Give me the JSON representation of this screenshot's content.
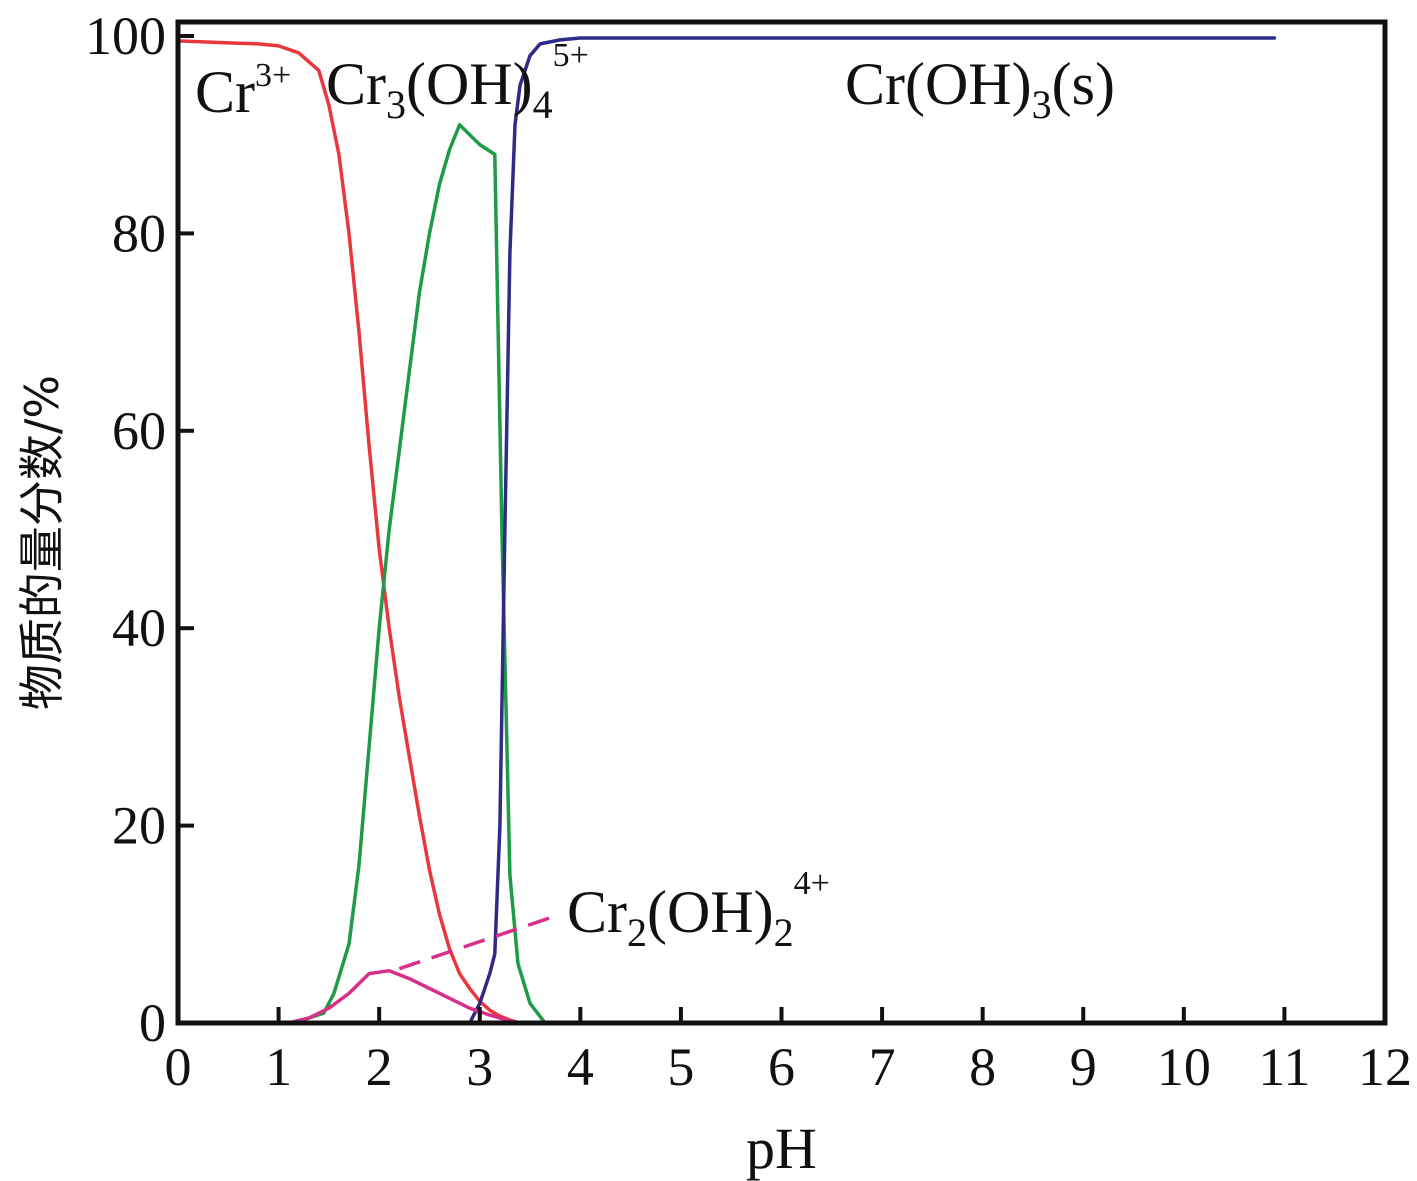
{
  "chart_data": {
    "type": "line",
    "xlabel": "pH",
    "ylabel": "物质的量分数/%",
    "xlim": [
      0,
      12
    ],
    "ylim": [
      0,
      100
    ],
    "x_ticks": [
      "0",
      "1",
      "2",
      "3",
      "4",
      "5",
      "6",
      "7",
      "8",
      "9",
      "10",
      "11",
      "12"
    ],
    "y_ticks": [
      "0",
      "20",
      "40",
      "60",
      "80",
      "100"
    ],
    "grid": false,
    "legend": "none",
    "annotations": [
      {
        "id": "cr3",
        "base": "Cr",
        "sup": "3+"
      },
      {
        "id": "cr3oh4",
        "base": "Cr",
        "sub1": "3",
        "mid": "(OH)",
        "sub2": "4",
        "sup": "5+"
      },
      {
        "id": "croh3s",
        "base": "Cr(OH)",
        "sub1": "3",
        "tail": "(s)"
      },
      {
        "id": "cr2oh2",
        "base": "Cr",
        "sub1": "2",
        "mid": "(OH)",
        "sub2": "2",
        "sup": "4+"
      }
    ],
    "series": [
      {
        "id": "cr3",
        "color": "#e8383d",
        "x": [
          0,
          0.5,
          0.8,
          1.0,
          1.2,
          1.4,
          1.5,
          1.6,
          1.7,
          1.8,
          1.9,
          2.0,
          2.1,
          2.2,
          2.3,
          2.4,
          2.5,
          2.6,
          2.7,
          2.8,
          2.9,
          3.0,
          3.1,
          3.2,
          3.3,
          3.4
        ],
        "y": [
          99.5,
          99.3,
          99.2,
          99.0,
          98.3,
          96.5,
          93.0,
          88.0,
          80.0,
          70.0,
          58.5,
          48.0,
          40.0,
          33.0,
          27.0,
          21.0,
          15.5,
          11.0,
          7.5,
          5.0,
          3.5,
          2.2,
          1.3,
          0.7,
          0.3,
          0.0
        ]
      },
      {
        "id": "cr3oh4",
        "color": "#1e9b46",
        "x": [
          1.1,
          1.3,
          1.45,
          1.55,
          1.7,
          1.8,
          1.9,
          2.0,
          2.1,
          2.2,
          2.3,
          2.4,
          2.5,
          2.6,
          2.7,
          2.8,
          2.9,
          3.0,
          3.15,
          3.22,
          3.3,
          3.38,
          3.5,
          3.65
        ],
        "y": [
          0.0,
          0.5,
          1.0,
          3.0,
          8.0,
          16.0,
          28.0,
          40.0,
          50.0,
          58.0,
          66.0,
          74.0,
          80.0,
          85.0,
          88.5,
          91.0,
          90.0,
          89.0,
          88.0,
          50.0,
          15.0,
          6.0,
          2.0,
          0.0
        ]
      },
      {
        "id": "croh3s",
        "color": "#2f2a85",
        "x": [
          2.9,
          3.0,
          3.1,
          3.15,
          3.2,
          3.25,
          3.3,
          3.35,
          3.4,
          3.5,
          3.6,
          3.8,
          4.0,
          5.0,
          7.0,
          9.0,
          10.9
        ],
        "y": [
          0.0,
          2.0,
          5.0,
          7.0,
          20.0,
          50.0,
          78.0,
          91.0,
          95.0,
          98.0,
          99.2,
          99.6,
          99.8,
          99.8,
          99.8,
          99.8,
          99.8
        ]
      },
      {
        "id": "cr2oh2",
        "color": "#d8308a",
        "x": [
          1.1,
          1.3,
          1.5,
          1.7,
          1.9,
          2.1,
          2.3,
          2.5,
          2.7,
          2.9,
          3.1,
          3.3,
          3.4
        ],
        "y": [
          0.0,
          0.5,
          1.5,
          3.0,
          5.0,
          5.3,
          4.5,
          3.5,
          2.5,
          1.5,
          0.8,
          0.2,
          0.0
        ]
      }
    ],
    "leader_line": {
      "color": "#d8308a",
      "dashed": true,
      "from": [
        2.2,
        5.5
      ],
      "to": [
        3.8,
        11.0
      ]
    }
  }
}
